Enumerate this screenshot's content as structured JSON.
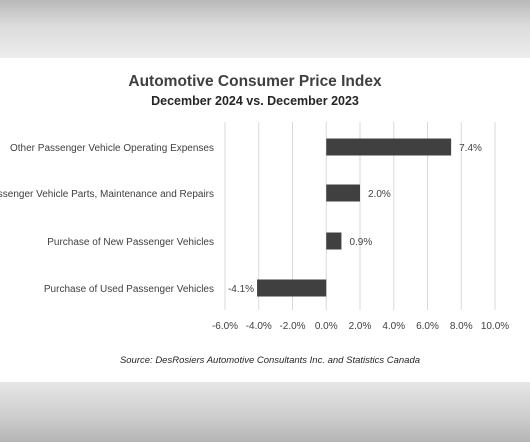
{
  "chart_data": {
    "type": "bar",
    "orientation": "horizontal",
    "title": "Automotive Consumer Price Index",
    "subtitle": "December 2024 vs. December 2023",
    "categories": [
      "Other Passenger Vehicle Operating Expenses",
      "Passenger Vehicle Parts, Maintenance and Repairs",
      "Purchase of New Passenger Vehicles",
      "Purchase of Used Passenger Vehicles"
    ],
    "values": [
      7.4,
      2.0,
      0.9,
      -4.1
    ],
    "data_labels": [
      "7.4%",
      "2.0%",
      "0.9%",
      "-4.1%"
    ],
    "xlim": [
      -6.0,
      10.0
    ],
    "ticks": [
      -6,
      -4,
      -2,
      0,
      2,
      4,
      6,
      8,
      10
    ],
    "tick_labels": [
      "-6.0%",
      "-4.0%",
      "-2.0%",
      "0.0%",
      "2.0%",
      "4.0%",
      "6.0%",
      "8.0%",
      "10.0%"
    ],
    "grid": true,
    "bar_color": "#404040",
    "source": "Source:  DesRosiers Automotive Consultants Inc. and Statistics Canada"
  }
}
